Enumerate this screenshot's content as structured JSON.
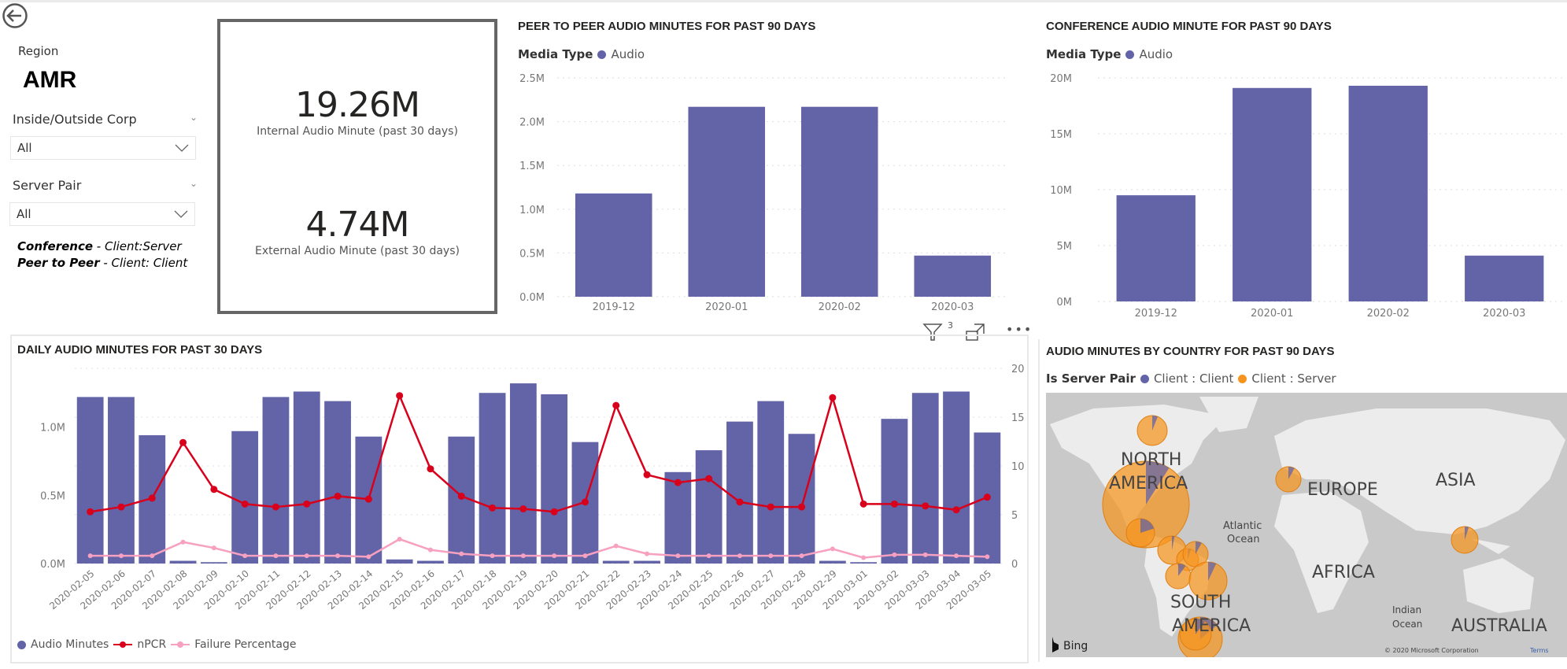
{
  "colors": {
    "audio": "#6264a7",
    "npcr": "#d9001b",
    "failure": "#f7a0c0",
    "client_client": "#6264a7",
    "client_server": "#f7941d"
  },
  "nav": {
    "back_icon": "back-arrow-icon"
  },
  "slicers": {
    "region_label": "Region",
    "region_value": "AMR",
    "inside_outside": {
      "label": "Inside/Outside Corp",
      "value": "All"
    },
    "server_pair": {
      "label": "Server Pair",
      "value": "All"
    },
    "note_conference_key": "Conference",
    "note_conference_val": " - Client:Server",
    "note_p2p_key": "Peer to Peer",
    "note_p2p_val": " - Client: Client"
  },
  "kpis": {
    "internal": {
      "value": "19.26M",
      "label": "Internal Audio Minute (past 30 days)"
    },
    "external": {
      "value": "4.74M",
      "label": "External Audio Minute (past 30 days)"
    }
  },
  "visual_header": {
    "filter_count": "3"
  },
  "chart_data": [
    {
      "id": "peer",
      "type": "bar",
      "title": "PEER TO PEER AUDIO MINUTES FOR PAST 90 DAYS",
      "legend_title": "Media Type",
      "legend": [
        "Audio"
      ],
      "categories": [
        "2019-12",
        "2020-01",
        "2020-02",
        "2020-03"
      ],
      "values": [
        1180000,
        2170000,
        2170000,
        470000
      ],
      "yticks": [
        "0.0M",
        "0.5M",
        "1.0M",
        "1.5M",
        "2.0M",
        "2.5M"
      ],
      "ylim": [
        0,
        2500000
      ],
      "grid": true
    },
    {
      "id": "conf",
      "type": "bar",
      "title": "CONFERENCE AUDIO MINUTE FOR PAST 90 DAYS",
      "legend_title": "Media Type",
      "legend": [
        "Audio"
      ],
      "categories": [
        "2019-12",
        "2020-01",
        "2020-02",
        "2020-03"
      ],
      "values": [
        9500000,
        19100000,
        19300000,
        4100000
      ],
      "yticks": [
        "0M",
        "5M",
        "10M",
        "15M",
        "20M"
      ],
      "ylim": [
        0,
        20000000
      ],
      "grid": true
    },
    {
      "id": "daily",
      "type": "bar+line",
      "title": "DAILY AUDIO MINUTES FOR PAST 30 DAYS",
      "categories": [
        "2020-02-05",
        "2020-02-06",
        "2020-02-07",
        "2020-02-08",
        "2020-02-09",
        "2020-02-10",
        "2020-02-11",
        "2020-02-12",
        "2020-02-13",
        "2020-02-14",
        "2020-02-15",
        "2020-02-16",
        "2020-02-17",
        "2020-02-18",
        "2020-02-19",
        "2020-02-20",
        "2020-02-21",
        "2020-02-22",
        "2020-02-23",
        "2020-02-24",
        "2020-02-25",
        "2020-02-26",
        "2020-02-27",
        "2020-02-28",
        "2020-02-29",
        "2020-03-01",
        "2020-03-02",
        "2020-03-03",
        "2020-03-04",
        "2020-03-05"
      ],
      "series": [
        {
          "name": "Audio Minutes",
          "axis": "left",
          "type": "bar",
          "values": [
            1220000,
            1220000,
            940000,
            20000,
            10000,
            970000,
            1220000,
            1260000,
            1190000,
            930000,
            30000,
            20000,
            930000,
            1250000,
            1320000,
            1240000,
            890000,
            20000,
            20000,
            670000,
            830000,
            1040000,
            1190000,
            950000,
            20000,
            10000,
            1060000,
            1250000,
            1260000,
            960000
          ]
        },
        {
          "name": "nPCR",
          "axis": "right",
          "type": "line",
          "values": [
            5.3,
            5.8,
            6.7,
            12.4,
            7.6,
            6.1,
            5.8,
            6.1,
            6.9,
            6.6,
            17.2,
            9.7,
            6.9,
            5.7,
            5.6,
            5.3,
            6.3,
            16.2,
            9.1,
            8.3,
            8.7,
            6.3,
            5.8,
            5.8,
            17.0,
            6.1,
            6.1,
            5.9,
            5.5,
            6.8
          ]
        },
        {
          "name": "Failure Percentage",
          "axis": "right",
          "type": "line",
          "values": [
            0.8,
            0.8,
            0.8,
            2.2,
            1.6,
            0.8,
            0.8,
            0.8,
            0.8,
            0.7,
            2.5,
            1.4,
            1.0,
            0.8,
            0.8,
            0.8,
            0.8,
            1.8,
            1.0,
            0.8,
            0.8,
            0.8,
            0.8,
            0.8,
            1.5,
            0.6,
            0.9,
            0.9,
            0.8,
            0.7
          ]
        }
      ],
      "yticks_left": [
        "0.0M",
        "0.5M",
        "1.0M"
      ],
      "yticks_right": [
        "0",
        "5",
        "10",
        "15",
        "20"
      ],
      "ylim_left": [
        0,
        1430000
      ],
      "ylim_right": [
        0,
        20
      ],
      "grid": true,
      "legend_position": "bottom-left"
    }
  ],
  "map": {
    "title": "AUDIO MINUTES BY COUNTRY FOR PAST 90 DAYS",
    "legend_title": "Is Server Pair",
    "legend": [
      "Client : Client",
      "Client : Server"
    ],
    "labels": {
      "north_america": [
        "NORTH",
        "AMERICA"
      ],
      "europe": "EUROPE",
      "asia": "ASIA",
      "africa": "AFRICA",
      "south_america": [
        "SOUTH",
        "AMERICA"
      ],
      "australia": "AUSTRALIA",
      "atlantic": [
        "Atlantic",
        "Ocean"
      ],
      "indian": [
        "Indian",
        "Ocean"
      ]
    },
    "provider": "Bing",
    "copyright": "© 2020 Microsoft Corporation",
    "terms": "Terms",
    "client_client_shares": [
      0.06,
      0.09,
      0.2,
      0.03,
      0.05,
      0.08,
      0.1,
      0.07,
      0.14,
      0.1,
      0.08,
      0.05
    ]
  }
}
